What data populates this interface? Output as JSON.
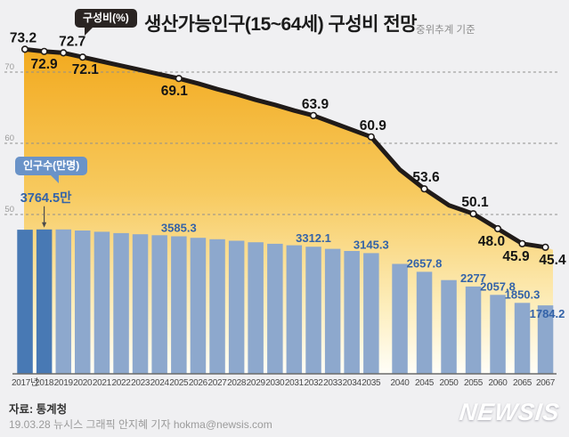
{
  "header": {
    "legend_line": "구성비(%)",
    "title": "생산가능인구(15~64세) 구성비 전망",
    "subtitle": "중위추계 기준",
    "legend_bar": "인구수(만명)"
  },
  "chart_data": {
    "type": "combo",
    "x_categories": [
      "2017년",
      "2018",
      "2019",
      "2020",
      "2021",
      "2022",
      "2023",
      "2024",
      "2025",
      "2026",
      "2027",
      "2028",
      "2029",
      "2030",
      "2031",
      "2032",
      "2033",
      "2034",
      "2035",
      "2040",
      "2045",
      "2050",
      "2055",
      "2060",
      "2065",
      "2067"
    ],
    "y_axis_left": {
      "unit": "%",
      "grid": "dashed",
      "ticks": [
        {
          "label": "70",
          "value": 70
        },
        {
          "label": "60",
          "value": 60
        },
        {
          "label": "50",
          "value": 50
        }
      ]
    },
    "series": [
      {
        "name": "구성비(%)",
        "type": "line",
        "unit": "%",
        "values": [
          73.2,
          72.9,
          72.7,
          72.1,
          71.5,
          70.9,
          70.3,
          69.7,
          69.1,
          68.4,
          67.6,
          66.9,
          66.1,
          65.4,
          64.6,
          63.9,
          62.9,
          61.9,
          60.9,
          56.3,
          53.6,
          51.3,
          50.1,
          48.0,
          45.9,
          45.4
        ],
        "note": "unlabeled years estimated from curve shape",
        "labeled_points": [
          {
            "year": "2017년",
            "label": "73.2",
            "placement": "above",
            "dx": -2
          },
          {
            "year": "2018",
            "label": "72.9",
            "placement": "below",
            "dx": 0
          },
          {
            "year": "2019",
            "label": "72.7",
            "placement": "above",
            "dx": 10
          },
          {
            "year": "2020",
            "label": "72.1",
            "placement": "below",
            "dx": 3
          },
          {
            "year": "2025",
            "label": "69.1",
            "placement": "below",
            "dx": -5
          },
          {
            "year": "2032",
            "label": "63.9",
            "placement": "above",
            "dx": 2
          },
          {
            "year": "2035",
            "label": "60.9",
            "placement": "above",
            "dx": 2
          },
          {
            "year": "2045",
            "label": "53.6",
            "placement": "above",
            "dx": 2
          },
          {
            "year": "2055",
            "label": "50.1",
            "placement": "above",
            "dx": 2
          },
          {
            "year": "2060",
            "label": "48.0",
            "placement": "below",
            "dx": -7
          },
          {
            "year": "2065",
            "label": "45.9",
            "placement": "below",
            "dx": -7
          },
          {
            "year": "2067",
            "label": "45.4",
            "placement": "below",
            "dx": 8
          }
        ]
      },
      {
        "name": "인구수(만명)",
        "type": "bar",
        "unit": "만명",
        "values": [
          3757,
          3764.5,
          3763,
          3736,
          3702,
          3668,
          3639,
          3612,
          3585.3,
          3546,
          3507,
          3468,
          3429,
          3390,
          3351,
          3312.1,
          3256.5,
          3200.9,
          3145.3,
          2865,
          2657.8,
          2444,
          2277,
          2057.8,
          1850.3,
          1784.2
        ],
        "note": "unlabeled years estimated from bar heights",
        "highlight_years": [
          "2017년",
          "2018"
        ],
        "labeled_points": [
          {
            "year": "2018",
            "label": "3764.5만",
            "placement": "callout"
          },
          {
            "year": "2025",
            "label": "3585.3",
            "placement": "above"
          },
          {
            "year": "2032",
            "label": "3312.1",
            "placement": "above"
          },
          {
            "year": "2035",
            "label": "3145.3",
            "placement": "above"
          },
          {
            "year": "2045",
            "label": "2657.8",
            "placement": "above"
          },
          {
            "year": "2055",
            "label": "2277",
            "placement": "above"
          },
          {
            "year": "2060",
            "label": "2057.8",
            "placement": "above"
          },
          {
            "year": "2065",
            "label": "1850.3",
            "placement": "above"
          },
          {
            "year": "2067",
            "label": "1784.2",
            "placement": "inside"
          }
        ]
      }
    ]
  },
  "footer": {
    "source": "자료: 통계청",
    "credit": "19.03.28 뉴시스 그래픽 안지혜 기자 hokma@newsis.com",
    "logo": "NEWSIS"
  },
  "colors": {
    "background": "#f0f0f2",
    "line": "#201b19",
    "dot_fill": "#ffffff",
    "line_value": "#141414",
    "area_top": "#f2a91d",
    "area_mid": "#f7ca5f",
    "area_low": "#fdeebd",
    "area_bottom": "#fffef8",
    "bar": "#8da8cd",
    "bar_dark": "#4879b4",
    "bar_value": "#3463a8",
    "grid": "#8f8f8f",
    "axis": "#6a6a6a",
    "x_tick": "#4a4a4a",
    "y_tick": "#9a9a9a",
    "bubble_line_bg": "#2a2422",
    "bubble_bar_bg": "#6a93c8"
  }
}
